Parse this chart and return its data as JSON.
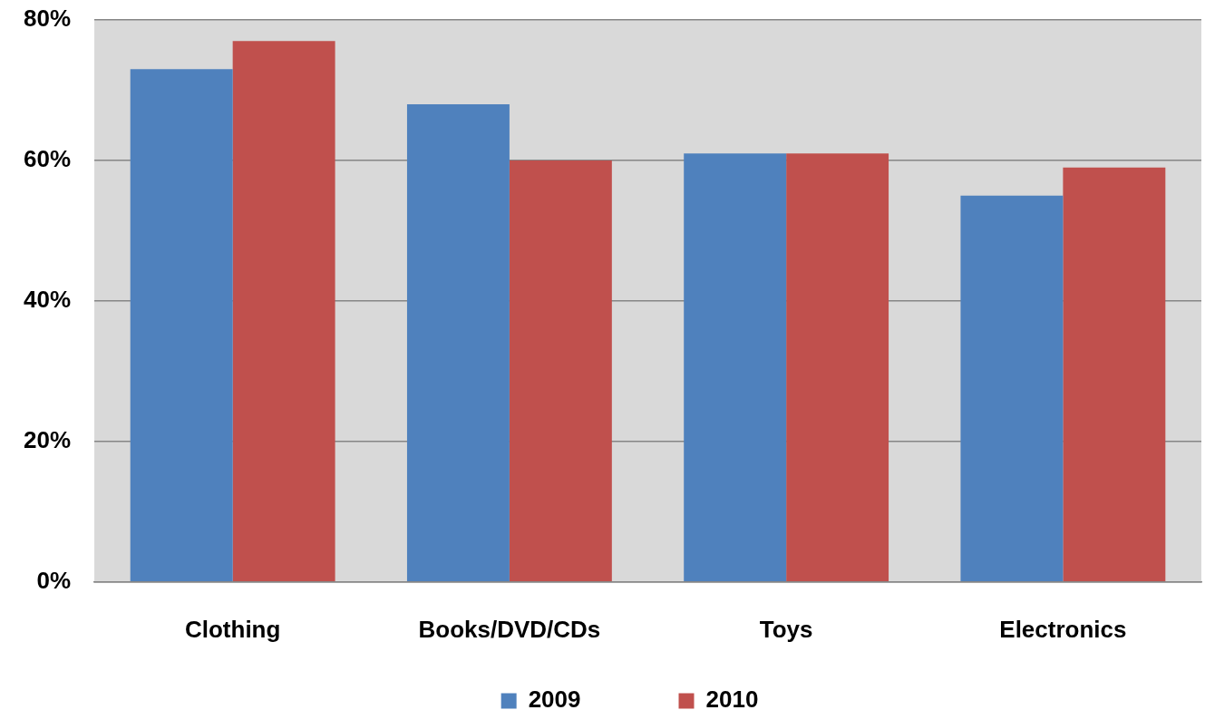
{
  "chart_data": {
    "type": "bar",
    "categories": [
      "Clothing",
      "Books/DVD/CDs",
      "Toys",
      "Electronics"
    ],
    "series": [
      {
        "name": "2009",
        "color": "#4f81bd",
        "values": [
          73,
          68,
          61,
          55
        ]
      },
      {
        "name": "2010",
        "color": "#c0504d",
        "values": [
          77,
          60,
          61,
          59
        ]
      }
    ],
    "ylim": [
      0,
      80
    ],
    "yticks": [
      {
        "value": 0,
        "label": "0%"
      },
      {
        "value": 20,
        "label": "20%"
      },
      {
        "value": 40,
        "label": "40%"
      },
      {
        "value": 60,
        "label": "60%"
      },
      {
        "value": 80,
        "label": "80%"
      }
    ],
    "grid": "y",
    "legend": "bottom"
  }
}
